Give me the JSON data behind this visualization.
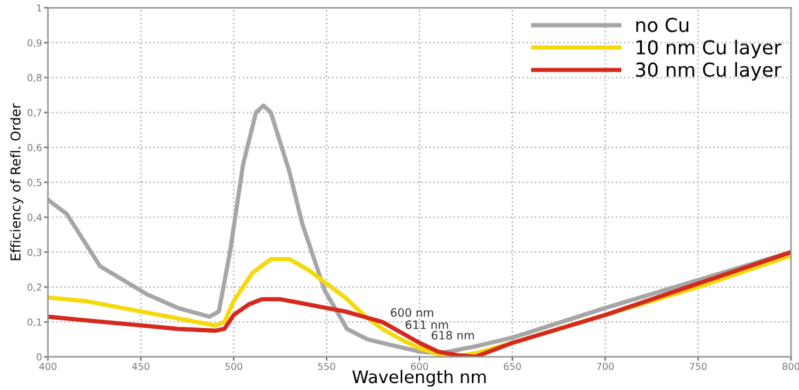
{
  "chart_data": {
    "type": "line",
    "xlabel": "Wavelength nm",
    "ylabel": "Efficiency of Refl. Order",
    "xlim": [
      400,
      800
    ],
    "xticks": [
      400,
      450,
      500,
      550,
      600,
      650,
      700,
      750,
      800
    ],
    "ylim": [
      0,
      1
    ],
    "yticks": [
      0,
      {
        "value": 0.1,
        "label": "0,1"
      },
      {
        "value": 0.2,
        "label": "0,2"
      },
      {
        "value": 0.3,
        "label": "0,3"
      },
      {
        "value": 0.4,
        "label": "0,4"
      },
      {
        "value": 0.5,
        "label": "0,5"
      },
      {
        "value": 0.6,
        "label": "0,6"
      },
      {
        "value": 0.7,
        "label": "0,7"
      },
      {
        "value": 0.8,
        "label": "0,8"
      },
      {
        "value": 0.9,
        "label": "0,9"
      },
      1
    ],
    "grid": true,
    "legend": "top right",
    "line_style": "solid",
    "series": [
      {
        "name": "no Cu",
        "color": "#a6a6a6",
        "x": [
          400,
          410,
          428,
          453,
          470,
          487,
          492,
          498,
          505,
          512,
          516,
          520,
          530,
          537,
          549,
          561,
          572,
          584,
          600,
          611,
          630,
          650,
          700,
          750,
          800
        ],
        "values": [
          0.45,
          0.41,
          0.26,
          0.18,
          0.14,
          0.115,
          0.13,
          0.3,
          0.55,
          0.7,
          0.72,
          0.7,
          0.53,
          0.38,
          0.19,
          0.08,
          0.05,
          0.035,
          0.015,
          0.01,
          0.03,
          0.055,
          0.14,
          0.22,
          0.3
        ]
      },
      {
        "name": "10 nm Cu layer",
        "color": "#f5d90a",
        "x": [
          400,
          420,
          450,
          470,
          490,
          495,
          500,
          510,
          520,
          530,
          540,
          550,
          560,
          570,
          580,
          590,
          600,
          610,
          618,
          630,
          650,
          700,
          750,
          800
        ],
        "values": [
          0.17,
          0.16,
          0.13,
          0.11,
          0.09,
          0.1,
          0.16,
          0.24,
          0.28,
          0.28,
          0.25,
          0.21,
          0.17,
          0.12,
          0.08,
          0.05,
          0.025,
          0.008,
          0.0,
          0.01,
          0.04,
          0.12,
          0.2,
          0.29
        ]
      },
      {
        "name": "30 nm Cu layer",
        "color": "#d42a1e",
        "x": [
          400,
          420,
          450,
          470,
          490,
          495,
          500,
          508,
          515,
          525,
          535,
          550,
          560,
          570,
          580,
          590,
          600,
          610,
          620,
          630,
          650,
          700,
          750,
          800
        ],
        "values": [
          0.115,
          0.105,
          0.09,
          0.08,
          0.075,
          0.08,
          0.12,
          0.15,
          0.165,
          0.165,
          0.155,
          0.14,
          0.13,
          0.115,
          0.1,
          0.07,
          0.04,
          0.015,
          0.005,
          0.0,
          0.04,
          0.12,
          0.21,
          0.3
        ]
      }
    ],
    "annotations": [
      "600 nm",
      "611 nm",
      "618 nm"
    ]
  }
}
